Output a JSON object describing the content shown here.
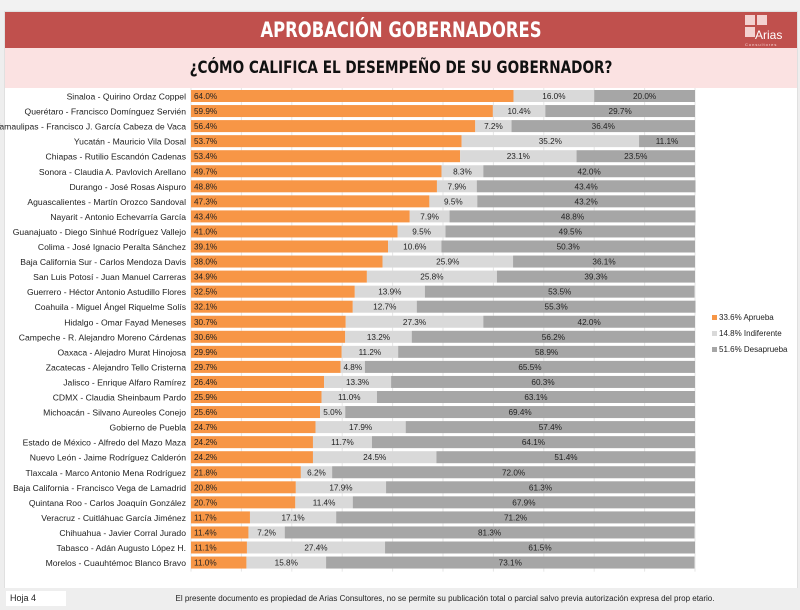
{
  "header": {
    "title": "APROBACIÓN GOBERNADORES",
    "subtitle": "¿CÓMO CALIFICA EL DESEMPEÑO DE SU GOBERNADOR?",
    "logo_text": "Arias",
    "logo_subtext": "Consultores"
  },
  "footer": {
    "page": "Hoja 4",
    "disclaimer": "El presente documento es propiedad de Arias Consultores, no se permite su publicación total o parcial salvo previa autorización expresa del prop etario."
  },
  "colors": {
    "aprueba": "#f79646",
    "indiferente": "#d9d9d9",
    "desaprueba": "#a6a6a6",
    "title_bg": "#c0504d",
    "subtitle_bg": "#fbe2e2"
  },
  "chart_data": {
    "type": "bar",
    "orientation": "horizontal",
    "stacked": true,
    "title": "¿CÓMO CALIFICA EL DESEMPEÑO DE SU GOBERNADOR?",
    "xlabel": "",
    "ylabel": "",
    "xlim": [
      0,
      100
    ],
    "grid": true,
    "legend_position": "right",
    "categories": [
      "Sinaloa - Quirino Ordaz Coppel",
      "Querétaro - Francisco Domínguez Servién",
      "Tamaulipas - Francisco J. García Cabeza de Vaca",
      "Yucatán  - Mauricio Vila Dosal",
      "Chiapas - Rutilio Escandón Cadenas",
      "Sonora - Claudia A. Pavlovich Arellano",
      "Durango - José Rosas Aispuro",
      "Aguascalientes - Martín Orozco Sandoval",
      "Nayarit - Antonio Echevarría García",
      "Guanajuato - Diego Sinhué Rodríguez Vallejo",
      "Colima - José Ignacio Peralta Sánchez",
      "Baja California Sur - Carlos Mendoza Davis",
      "San Luis Potosí - Juan Manuel Carreras",
      "Guerrero - Héctor Antonio Astudillo Flores",
      "Coahuila - Miguel Ángel Riquelme Solís",
      "Hidalgo - Omar Fayad Meneses",
      "Campeche - R. Alejandro Moreno Cárdenas",
      "Oaxaca  - Alejadro Murat Hinojosa",
      "Zacatecas - Alejandro Tello Cristerna",
      "Jalisco - Enrique Alfaro Ramírez",
      "CDMX - Claudia Sheinbaum Pardo",
      "Michoacán - Silvano Aureoles Conejo",
      "Gobierno de Puebla",
      "Estado de México - Alfredo del Mazo Maza",
      "Nuevo León  - Jaime Rodríguez Calderón",
      "Tlaxcala - Marco Antonio Mena Rodríguez",
      "Baja California - Francisco Vega de Lamadrid",
      "Quintana Roo - Carlos Joaquín González",
      "Veracruz - Cuitláhuac García Jiménez",
      "Chihuahua - Javier Corral Jurado",
      "Tabasco - Adán Augusto López H.",
      "Morelos - Cuauhtémoc Blanco Bravo"
    ],
    "series": [
      {
        "name": "Aprueba",
        "legend": "33.6% Aprueba",
        "color": "#f79646",
        "values": [
          64.0,
          59.9,
          56.4,
          53.7,
          53.4,
          49.7,
          48.8,
          47.3,
          43.4,
          41.0,
          39.1,
          38.0,
          34.9,
          32.5,
          32.1,
          30.7,
          30.6,
          29.9,
          29.7,
          26.4,
          25.9,
          25.6,
          24.7,
          24.2,
          24.2,
          21.8,
          20.8,
          20.7,
          11.7,
          11.4,
          11.1,
          11.0
        ]
      },
      {
        "name": "Indiferente",
        "legend": "14.8% Indiferente",
        "color": "#d9d9d9",
        "values": [
          16.0,
          10.4,
          7.2,
          35.2,
          23.1,
          8.3,
          7.9,
          9.5,
          7.9,
          9.5,
          10.6,
          25.9,
          25.8,
          13.9,
          12.7,
          27.3,
          13.2,
          11.2,
          4.8,
          13.3,
          11.0,
          5.0,
          17.9,
          11.7,
          24.5,
          6.2,
          17.9,
          11.4,
          17.1,
          7.2,
          27.4,
          15.8
        ]
      },
      {
        "name": "Desaprueba",
        "legend": "51.6% Desaprueba",
        "color": "#a6a6a6",
        "values": [
          20.0,
          29.7,
          36.4,
          11.1,
          23.5,
          42.0,
          43.4,
          43.2,
          48.8,
          49.5,
          50.3,
          36.1,
          39.3,
          53.5,
          55.3,
          42.0,
          56.2,
          58.9,
          65.5,
          60.3,
          63.1,
          69.4,
          57.4,
          64.1,
          51.4,
          72.0,
          61.3,
          67.9,
          71.2,
          81.3,
          61.5,
          73.1
        ]
      }
    ]
  }
}
